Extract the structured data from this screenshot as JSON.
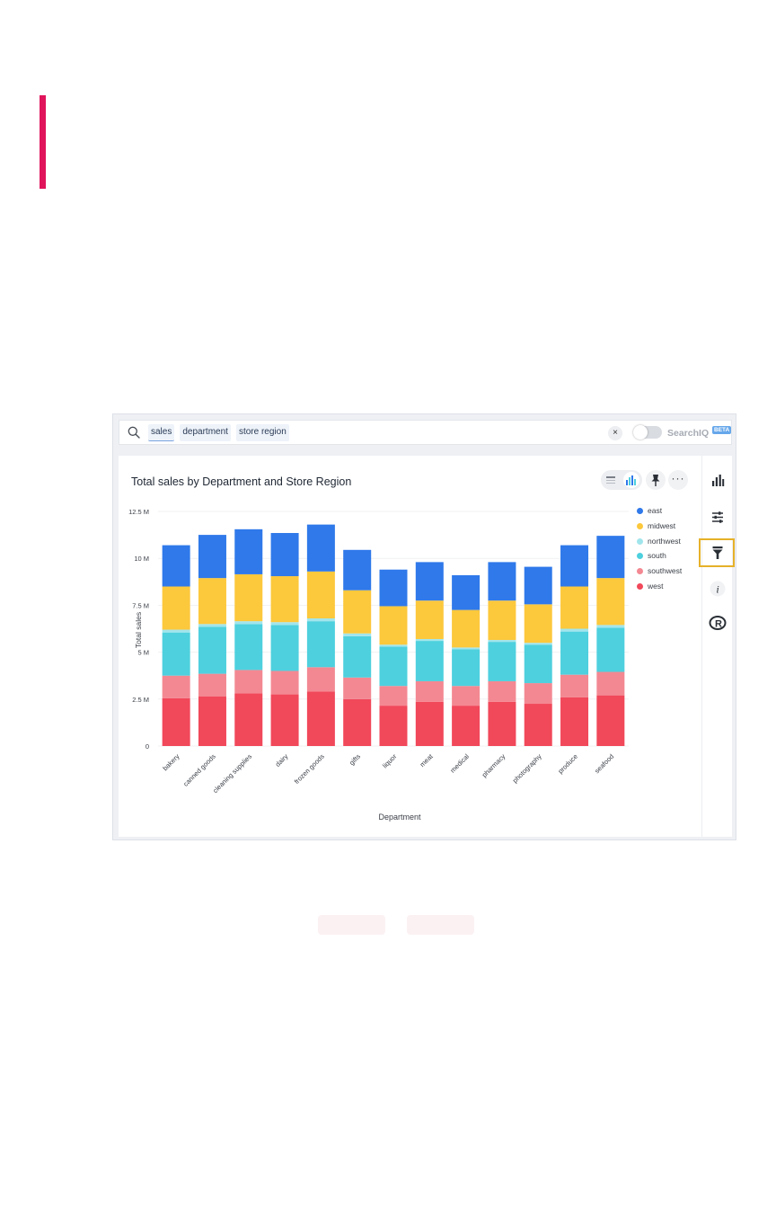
{
  "search": {
    "tokens": [
      "sales",
      "department",
      "store region"
    ],
    "clear_label": "×",
    "searchiq_label": "SearchIQ",
    "beta_label": "BETA"
  },
  "chart_header": {
    "title": "Total sales by Department and Store Region",
    "more_label": "···"
  },
  "side_rail": {
    "icons": [
      "chart-type-icon",
      "settings-sliders-icon",
      "filter-icon",
      "info-icon",
      "r-icon"
    ],
    "selected": "filter-icon"
  },
  "colors": {
    "accent": "#e0145b",
    "highlight": "#e6b12a"
  },
  "chart_data": {
    "type": "bar",
    "stacked": true,
    "title": "Total sales by Department and Store Region",
    "xlabel": "Department",
    "ylabel": "Total sales",
    "ylim": [
      0,
      12500000
    ],
    "yticks": [
      0,
      2500000,
      5000000,
      7500000,
      10000000,
      12500000
    ],
    "ytick_labels": [
      "0",
      "2.5 M",
      "5 M",
      "7.5 M",
      "10 M",
      "12.5 M"
    ],
    "legend_position": "right",
    "categories": [
      "bakery",
      "canned goods",
      "cleaning supplies",
      "dairy",
      "frozen goods",
      "gifts",
      "liquor",
      "meat",
      "medical",
      "pharmacy",
      "photography",
      "produce",
      "seafood"
    ],
    "series": [
      {
        "name": "west",
        "color": "#f1485a",
        "values": [
          2550000,
          2650000,
          2800000,
          2750000,
          2900000,
          2500000,
          2150000,
          2350000,
          2150000,
          2350000,
          2250000,
          2600000,
          2700000
        ]
      },
      {
        "name": "southwest",
        "color": "#f38892",
        "values": [
          1200000,
          1200000,
          1250000,
          1250000,
          1300000,
          1150000,
          1050000,
          1100000,
          1050000,
          1100000,
          1100000,
          1200000,
          1250000
        ]
      },
      {
        "name": "south",
        "color": "#4ed0de",
        "values": [
          2300000,
          2500000,
          2450000,
          2450000,
          2450000,
          2200000,
          2100000,
          2150000,
          1950000,
          2100000,
          2050000,
          2300000,
          2350000
        ]
      },
      {
        "name": "northwest",
        "color": "#a1e5ec",
        "values": [
          150000,
          150000,
          150000,
          150000,
          150000,
          150000,
          100000,
          100000,
          100000,
          100000,
          100000,
          150000,
          150000
        ]
      },
      {
        "name": "midwest",
        "color": "#fcc83c",
        "values": [
          2300000,
          2450000,
          2500000,
          2450000,
          2500000,
          2300000,
          2050000,
          2050000,
          2000000,
          2100000,
          2050000,
          2250000,
          2500000
        ]
      },
      {
        "name": "east",
        "color": "#2f79ea",
        "values": [
          2200000,
          2300000,
          2400000,
          2300000,
          2500000,
          2150000,
          1950000,
          2050000,
          1850000,
          2050000,
          2000000,
          2200000,
          2250000
        ]
      }
    ],
    "legend_order": [
      "east",
      "midwest",
      "northwest",
      "south",
      "southwest",
      "west"
    ]
  }
}
